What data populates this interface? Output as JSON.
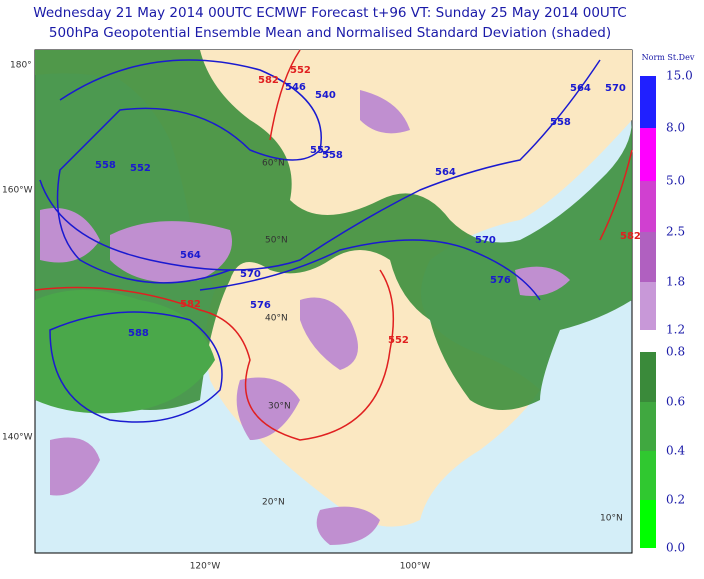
{
  "header": {
    "line1": "Wednesday 21 May 2014 00UTC ECMWF Forecast t+96  VT: Sunday 25 May 2014 00UTC",
    "line2": "500hPa Geopotential Ensemble Mean and Normalised Standard Deviation (shaded)"
  },
  "colorbar": {
    "title": "Norm St.Dev",
    "labels": [
      "15.0",
      "8.0",
      "5.0",
      "2.5",
      "1.8",
      "1.2",
      "0.8",
      "0.6",
      "0.4",
      "0.2",
      "0.0"
    ]
  },
  "graticule": {
    "lon_left": [
      "180°",
      "160°W",
      "140°W"
    ],
    "lon_bottom": [
      "120°W",
      "100°W"
    ],
    "lat": [
      "60°N",
      "50°N",
      "40°N",
      "30°N",
      "20°N",
      "10°N"
    ]
  },
  "contours": {
    "blue": [
      "546",
      "540",
      "552",
      "558",
      "552",
      "558",
      "564",
      "564",
      "570",
      "576",
      "588",
      "570",
      "576",
      "564",
      "558",
      "570"
    ],
    "red": [
      "582",
      "582",
      "552",
      "552",
      "582"
    ]
  }
}
